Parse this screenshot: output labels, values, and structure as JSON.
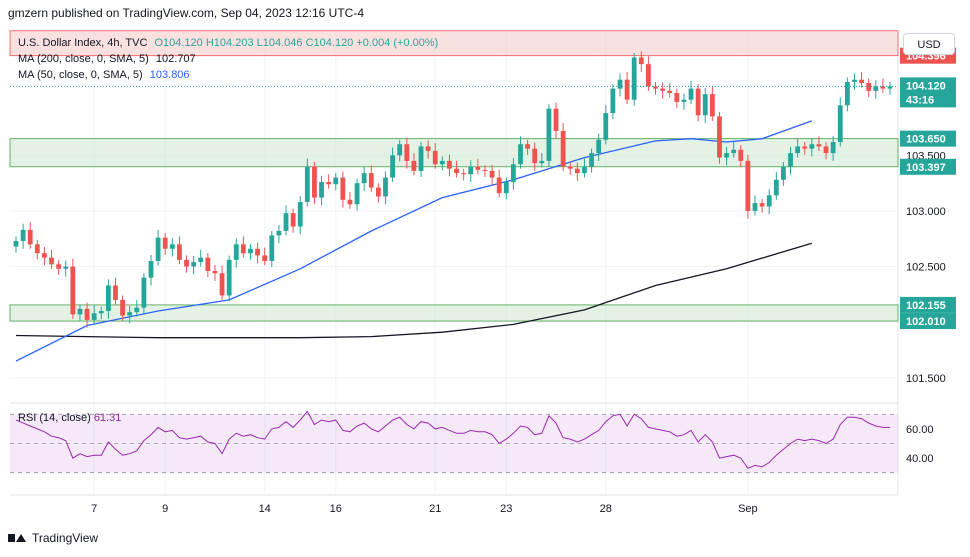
{
  "header": {
    "text": "gmzern published on TradingView.com, Sep 04, 2023 12:16 UTC-4"
  },
  "legend": {
    "line1": "U.S. Dollar Index, 4h, TVC",
    "ohlc": {
      "o": "O104.120",
      "h": "H104.203",
      "l": "L104.046",
      "c": "C104.120",
      "chg": "+0.004 (+0.00%)"
    },
    "ma200_label": "MA (200, close, 0, SMA, 5)",
    "ma200_value": "102.707",
    "ma50_label": "MA (50, close, 0, SMA, 5)",
    "ma50_value": "103.806"
  },
  "rsi_legend": {
    "label": "RSI (14, close)",
    "value": "61.31"
  },
  "unit_button": "USD",
  "footer": {
    "brand": "TradingView"
  },
  "colors": {
    "up": "#26a69a",
    "down": "#ef5350",
    "ma50": "#2962ff",
    "ma200": "#131722",
    "rsi": "#9c27b0",
    "resistance_zone": "#f8c7c7",
    "support_zone": "#c8e6c9"
  },
  "chart_data": [
    {
      "type": "candlestick",
      "title": "U.S. Dollar Index, 4h, TVC",
      "ylim": [
        101.3,
        104.6
      ],
      "yticks": [
        101.5,
        102.0,
        102.5,
        103.0,
        103.5
      ],
      "ytick_labels": [
        "101.500",
        "102.000",
        "102.500",
        "103.000",
        "103.500"
      ],
      "xticks": [
        {
          "label": "7",
          "index": 11
        },
        {
          "label": "9",
          "index": 21
        },
        {
          "label": "14",
          "index": 35
        },
        {
          "label": "16",
          "index": 45
        },
        {
          "label": "21",
          "index": 59
        },
        {
          "label": "23",
          "index": 69
        },
        {
          "label": "28",
          "index": 83
        },
        {
          "label": "Sep",
          "index": 103
        }
      ],
      "price_labels": [
        {
          "label": "104.396",
          "value": 104.396,
          "color": "#ef5350"
        },
        {
          "label": "104.120",
          "sublabel": "43:16",
          "value": 104.12,
          "color": "#26a69a"
        },
        {
          "label": "103.650",
          "value": 103.65,
          "color": "#26a69a"
        },
        {
          "label": "103.397",
          "value": 103.397,
          "color": "#26a69a"
        },
        {
          "label": "102.155",
          "value": 102.155,
          "color": "#26a69a"
        },
        {
          "label": "102.010",
          "value": 102.01,
          "color": "#26a69a"
        }
      ],
      "zones": [
        {
          "name": "resistance",
          "from": 104.396,
          "to": 104.62
        },
        {
          "name": "support",
          "from": 103.397,
          "to": 103.65
        },
        {
          "name": "support",
          "from": 102.01,
          "to": 102.155
        }
      ],
      "last_price": 104.12,
      "closes": [
        102.73,
        102.83,
        102.7,
        102.62,
        102.58,
        102.52,
        102.48,
        102.5,
        102.07,
        102.12,
        102.02,
        102.08,
        102.1,
        102.33,
        102.2,
        102.06,
        102.09,
        102.13,
        102.4,
        102.55,
        102.76,
        102.66,
        102.7,
        102.56,
        102.5,
        102.54,
        102.58,
        102.46,
        102.44,
        102.24,
        102.56,
        102.7,
        102.62,
        102.66,
        102.6,
        102.55,
        102.78,
        102.82,
        102.98,
        102.86,
        103.08,
        103.4,
        103.12,
        103.26,
        103.24,
        103.3,
        103.1,
        103.06,
        103.25,
        103.34,
        103.21,
        103.13,
        103.3,
        103.5,
        103.6,
        103.45,
        103.36,
        103.58,
        103.54,
        103.42,
        103.45,
        103.38,
        103.34,
        103.33,
        103.4,
        103.37,
        103.36,
        103.3,
        103.16,
        103.26,
        103.42,
        103.6,
        103.56,
        103.43,
        103.45,
        103.92,
        103.72,
        103.4,
        103.38,
        103.34,
        103.4,
        103.52,
        103.64,
        103.88,
        104.1,
        104.18,
        104.0,
        104.38,
        104.32,
        104.12,
        104.1,
        104.08,
        104.06,
        103.98,
        104.0,
        104.1,
        103.86,
        104.05,
        103.85,
        103.48,
        103.52,
        103.55,
        103.45,
        103.0,
        103.07,
        103.04,
        103.14,
        103.28,
        103.4,
        103.52,
        103.58,
        103.56,
        103.6,
        103.58,
        103.52,
        103.62,
        103.95,
        104.16,
        104.18,
        104.15,
        104.08,
        104.12,
        104.1,
        104.12
      ],
      "ma50": {
        "x": [
          0,
          10,
          20,
          30,
          40,
          50,
          60,
          70,
          80,
          90,
          95,
          100,
          105,
          112
        ],
        "y": [
          101.65,
          101.97,
          102.1,
          102.2,
          102.48,
          102.82,
          103.12,
          103.28,
          103.48,
          103.63,
          103.65,
          103.62,
          103.65,
          103.81
        ]
      },
      "ma200": {
        "x": [
          0,
          10,
          20,
          30,
          40,
          50,
          60,
          70,
          80,
          90,
          100,
          112
        ],
        "y": [
          101.88,
          101.87,
          101.86,
          101.86,
          101.86,
          101.87,
          101.91,
          101.98,
          102.11,
          102.33,
          102.48,
          102.71
        ]
      }
    },
    {
      "type": "line",
      "title": "RSI (14, close)",
      "ylim": [
        25,
        75
      ],
      "yticks": [
        40,
        60
      ],
      "ytick_labels": [
        "40.00",
        "60.00"
      ],
      "band": [
        30,
        70
      ],
      "values": [
        66,
        64,
        62,
        60,
        58,
        55,
        54,
        52,
        40,
        43,
        41,
        42,
        42,
        51,
        46,
        42,
        43,
        45,
        52,
        56,
        61,
        58,
        59,
        54,
        53,
        54,
        55,
        51,
        50,
        43,
        53,
        57,
        55,
        56,
        54,
        53,
        60,
        61,
        65,
        61,
        66,
        72,
        63,
        66,
        65,
        66,
        59,
        58,
        62,
        64,
        60,
        58,
        62,
        66,
        68,
        63,
        60,
        65,
        64,
        60,
        61,
        59,
        57,
        57,
        59,
        58,
        58,
        56,
        50,
        53,
        57,
        62,
        61,
        56,
        57,
        69,
        64,
        54,
        53,
        51,
        53,
        56,
        59,
        65,
        69,
        70,
        62,
        70,
        67,
        61,
        60,
        59,
        58,
        55,
        56,
        59,
        51,
        56,
        51,
        40,
        41,
        42,
        40,
        33,
        35,
        34,
        37,
        42,
        46,
        50,
        53,
        52,
        53,
        52,
        50,
        53,
        63,
        68,
        68,
        67,
        64,
        62,
        61,
        61
      ]
    }
  ]
}
